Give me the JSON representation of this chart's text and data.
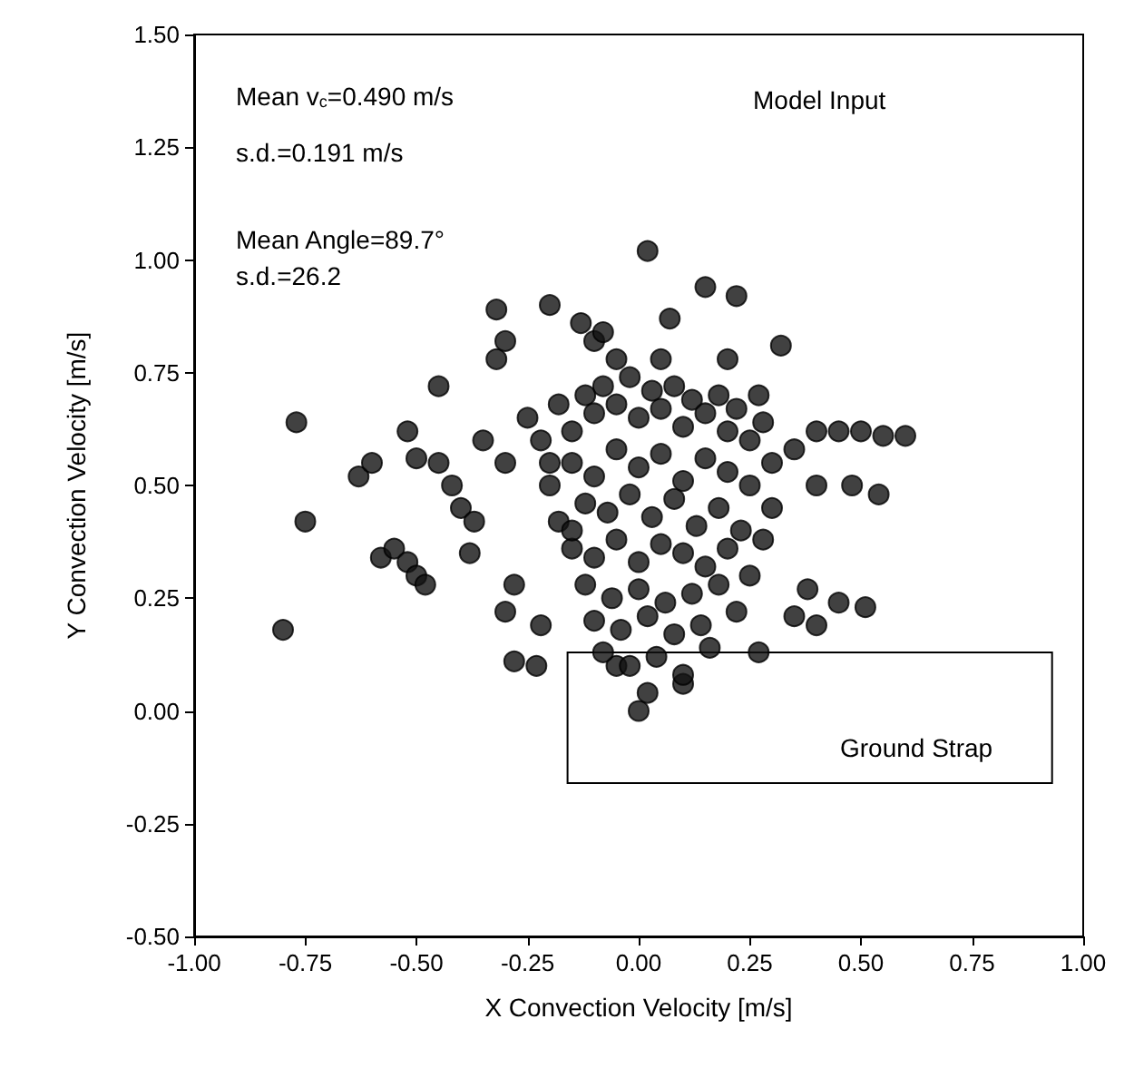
{
  "chart_data": {
    "type": "scatter",
    "xlabel": "X Convection Velocity [m/s]",
    "ylabel": "Y Convection Velocity [m/s]",
    "annotations": [
      "Mean v$_{c}$=0.490 m/s",
      "s.d.=0.191 m/s",
      "Mean Angle=89.7°",
      "s.d.=26.2",
      "Model Input",
      "Ground Strap"
    ],
    "xlim": [
      -1,
      1
    ],
    "xticks": [
      {
        "value": -1,
        "label": "-1.00"
      },
      {
        "value": -0.75,
        "label": "-0.75"
      },
      {
        "value": -0.5,
        "label": "-0.50"
      },
      {
        "value": -0.25,
        "label": "-0.25"
      },
      {
        "value": 0,
        "label": "0.00"
      },
      {
        "value": 0.25,
        "label": "0.25"
      },
      {
        "value": 0.5,
        "label": "0.50"
      },
      {
        "value": 0.75,
        "label": "0.75"
      },
      {
        "value": 1,
        "label": "1.00"
      }
    ],
    "ylim": [
      -0.5,
      1.5
    ],
    "yticks": [
      {
        "value": -0.5,
        "label": "-0.50"
      },
      {
        "value": -0.25,
        "label": "-0.25"
      },
      {
        "value": 0,
        "label": "0.00"
      },
      {
        "value": 0.25,
        "label": "0.25"
      },
      {
        "value": 0.5,
        "label": "0.50"
      },
      {
        "value": 0.75,
        "label": "0.75"
      },
      {
        "value": 1,
        "label": "1.00"
      },
      {
        "value": 1.25,
        "label": "1.25"
      },
      {
        "value": 1.5,
        "label": "1.50"
      }
    ],
    "marker": "circle",
    "series": [
      {
        "color": "#111111",
        "x": [
          -0.8,
          -0.75,
          -0.77,
          -0.63,
          -0.6,
          -0.58,
          -0.55,
          -0.52,
          -0.5,
          -0.48,
          -0.52,
          -0.5,
          -0.45,
          -0.45,
          -0.42,
          -0.4,
          -0.38,
          -0.37,
          -0.35,
          -0.32,
          -0.32,
          -0.3,
          -0.3,
          -0.28,
          -0.3,
          -0.28,
          -0.23,
          -0.22,
          -0.2,
          -0.13,
          -0.1,
          -0.08,
          0.02,
          0.07,
          0.15,
          0.22,
          0.32,
          0.27,
          0.35,
          0.4,
          0.45,
          0.5,
          0.55,
          0.6,
          0.4,
          0.48,
          0.54,
          0.38,
          0.45,
          0.51,
          0.35,
          0.4,
          0.27,
          0,
          0.02,
          -0.05,
          0.1,
          -0.25,
          -0.22,
          -0.2,
          -0.18,
          -0.15,
          -0.12,
          -0.1,
          -0.08,
          -0.05,
          -0.02,
          0,
          0.03,
          0.05,
          0.08,
          0.1,
          0.12,
          0.15,
          0.18,
          0.2,
          0.22,
          0.25,
          0.28,
          0.3,
          -0.2,
          -0.15,
          -0.1,
          -0.05,
          0,
          0.05,
          0.1,
          0.15,
          0.2,
          0.25,
          0.3,
          -0.18,
          -0.12,
          -0.07,
          -0.02,
          0.03,
          0.08,
          0.13,
          0.18,
          0.23,
          0.28,
          -0.15,
          -0.1,
          -0.05,
          0,
          0.05,
          0.1,
          0.15,
          0.2,
          0.25,
          -0.12,
          -0.06,
          0,
          0.06,
          0.12,
          0.18,
          0.22,
          -0.1,
          -0.04,
          0.02,
          0.08,
          0.14,
          -0.08,
          -0.02,
          0.04,
          0.1,
          0.16,
          -0.15,
          0.2,
          -0.05,
          0.05
        ],
        "values": [
          0.18,
          0.42,
          0.64,
          0.52,
          0.55,
          0.34,
          0.36,
          0.33,
          0.3,
          0.28,
          0.62,
          0.56,
          0.72,
          0.55,
          0.5,
          0.45,
          0.35,
          0.42,
          0.6,
          0.78,
          0.89,
          0.82,
          0.55,
          0.28,
          0.22,
          0.11,
          0.1,
          0.19,
          0.9,
          0.86,
          0.82,
          0.84,
          1.02,
          0.87,
          0.94,
          0.92,
          0.81,
          0.7,
          0.58,
          0.62,
          0.62,
          0.62,
          0.61,
          0.61,
          0.5,
          0.5,
          0.48,
          0.27,
          0.24,
          0.23,
          0.21,
          0.19,
          0.13,
          0,
          0.04,
          0.1,
          0.06,
          0.65,
          0.6,
          0.55,
          0.68,
          0.62,
          0.7,
          0.66,
          0.72,
          0.68,
          0.74,
          0.65,
          0.71,
          0.67,
          0.72,
          0.63,
          0.69,
          0.66,
          0.7,
          0.62,
          0.67,
          0.6,
          0.64,
          0.55,
          0.5,
          0.55,
          0.52,
          0.58,
          0.54,
          0.57,
          0.51,
          0.56,
          0.53,
          0.5,
          0.45,
          0.42,
          0.46,
          0.44,
          0.48,
          0.43,
          0.47,
          0.41,
          0.45,
          0.4,
          0.38,
          0.36,
          0.34,
          0.38,
          0.33,
          0.37,
          0.35,
          0.32,
          0.36,
          0.3,
          0.28,
          0.25,
          0.27,
          0.24,
          0.26,
          0.28,
          0.22,
          0.2,
          0.18,
          0.21,
          0.17,
          0.19,
          0.13,
          0.1,
          0.12,
          0.08,
          0.14,
          0.4,
          0.78,
          0.78,
          0.78
        ]
      }
    ]
  }
}
